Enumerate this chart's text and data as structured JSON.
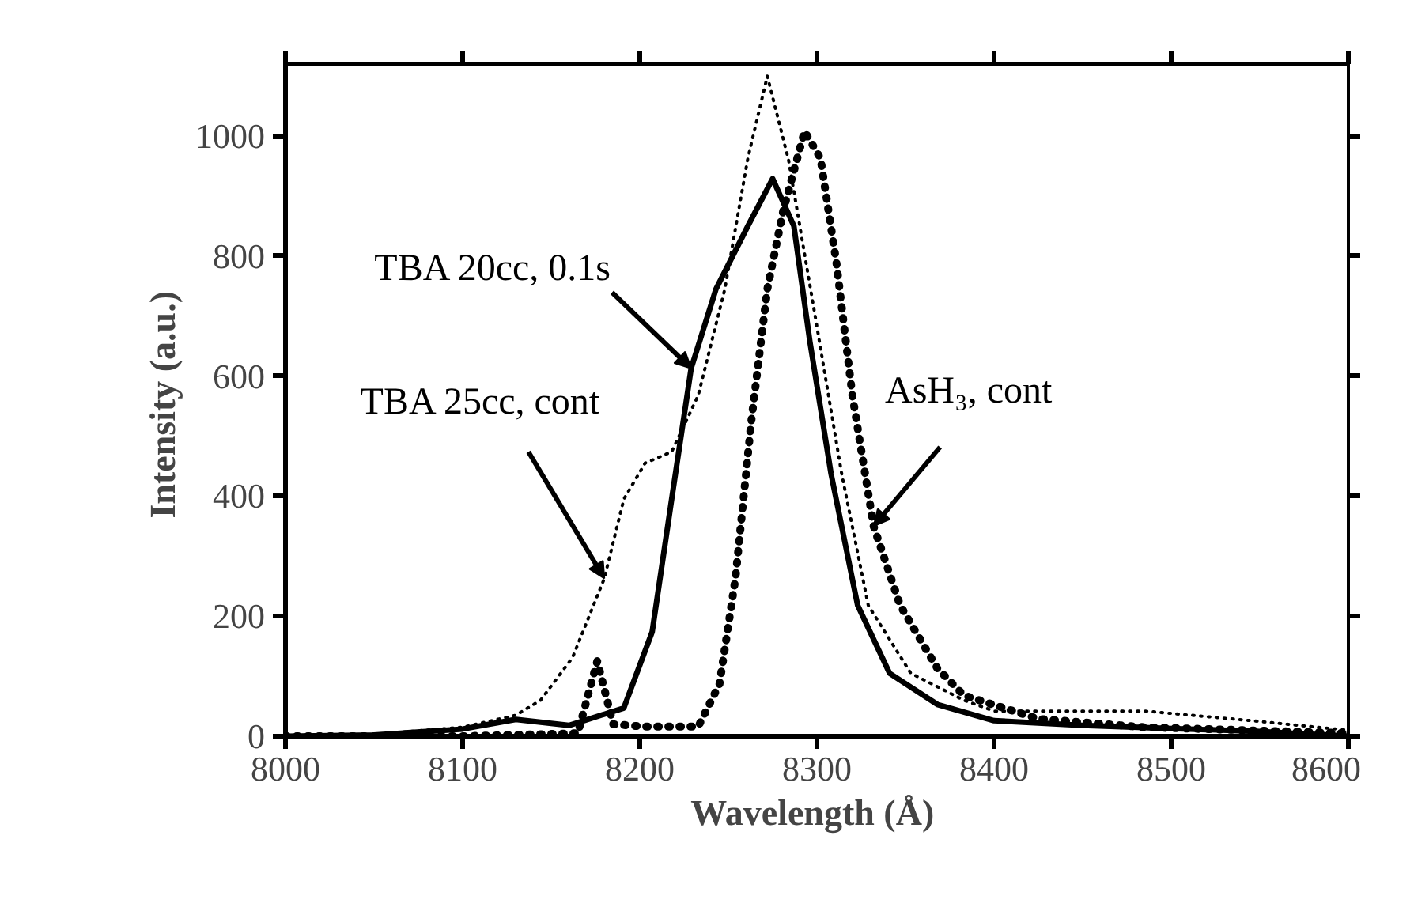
{
  "chart_data": {
    "type": "line",
    "xlabel": "Wavelength  (Å)",
    "ylabel": "Intensity  (a.u.)",
    "xlim": [
      8000,
      8600
    ],
    "ylim": [
      0,
      1120
    ],
    "xticks": [
      8000,
      8100,
      8200,
      8300,
      8400,
      8500,
      8600
    ],
    "yticks": [
      0,
      200,
      400,
      600,
      800,
      1000
    ],
    "grid": false,
    "series": [
      {
        "name": "TBA 20cc, 0.1s",
        "color": "#000000",
        "line_style": "solid",
        "x": [
          8000,
          8050,
          8100,
          8130,
          8160,
          8191,
          8207,
          8218,
          8229,
          8243,
          8261,
          8275,
          8287,
          8296,
          8308,
          8323,
          8341,
          8368,
          8400,
          8450,
          8500,
          8550,
          8600
        ],
        "values": [
          0,
          2,
          12,
          28,
          18,
          47,
          174,
          395,
          613,
          745,
          850,
          929,
          850,
          658,
          437,
          218,
          105,
          53,
          26,
          18,
          13,
          8,
          0
        ]
      },
      {
        "name": "TBA 25cc, cont",
        "color": "#000000",
        "line_style": "dotted",
        "x": [
          8000,
          8050,
          8100,
          8130,
          8144,
          8162,
          8180,
          8191,
          8203,
          8218,
          8233,
          8248,
          8261,
          8272,
          8284,
          8299,
          8314,
          8329,
          8353,
          8383,
          8400,
          8485,
          8545,
          8600
        ],
        "values": [
          0,
          3,
          15,
          35,
          60,
          131,
          263,
          395,
          455,
          474,
          568,
          745,
          963,
          1100,
          960,
          700,
          437,
          218,
          105,
          60,
          42,
          42,
          26,
          10
        ]
      },
      {
        "name": "AsH₃, cont",
        "color": "#000000",
        "line_style": "dashed",
        "x": [
          8000,
          8100,
          8165,
          8176,
          8185,
          8203,
          8233,
          8245,
          8254,
          8263,
          8272,
          8281,
          8293,
          8302,
          8311,
          8320,
          8332,
          8347,
          8368,
          8383,
          8425,
          8485,
          8600
        ],
        "values": [
          0,
          0,
          5,
          125,
          20,
          16,
          16,
          87,
          263,
          526,
          745,
          876,
          1008,
          963,
          789,
          568,
          350,
          218,
          113,
          68,
          29,
          15,
          5
        ]
      }
    ]
  }
}
